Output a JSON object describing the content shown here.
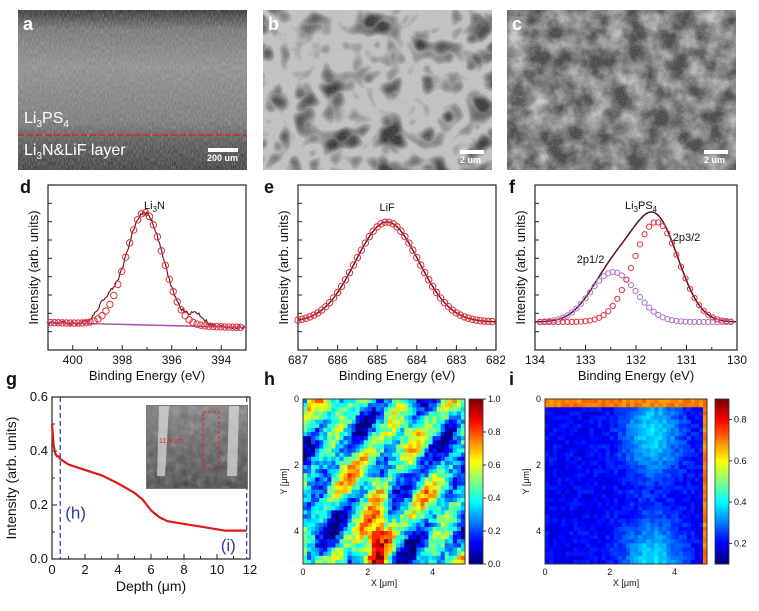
{
  "panels": {
    "a": {
      "letter": "a",
      "top_label": "Li",
      "top_sub": "3",
      "top_rest": "PS",
      "top_sub2": "4",
      "bottom_label": "Li",
      "bottom_sub": "3",
      "bottom_rest": "N&LiF layer",
      "scale": "200 um"
    },
    "b": {
      "letter": "b",
      "scale": "2 um"
    },
    "c": {
      "letter": "c",
      "scale": "2 um"
    },
    "d": {
      "letter": "d"
    },
    "e": {
      "letter": "e"
    },
    "f": {
      "letter": "f"
    },
    "g": {
      "letter": "g",
      "depth_label": "11.8 μm"
    },
    "h": {
      "letter": "h"
    },
    "i": {
      "letter": "i"
    }
  },
  "colors": {
    "fit": "#5a1020",
    "data": "#e0303a",
    "baseline": "#b04aa8",
    "red_curve": "#e01818",
    "guide": "#2a3f9a",
    "sub": "#b070c8"
  },
  "chart_data": [
    {
      "id": "d",
      "type": "line",
      "xlabel": "Binding Energy (eV)",
      "ylabel": "Intensity (arb. units)",
      "xlim": [
        401,
        393
      ],
      "x_ticks": [
        400,
        398,
        396,
        394
      ],
      "annotation": {
        "text": "Li",
        "sub": "3",
        "rest": "N"
      },
      "series": [
        {
          "style": "markers",
          "peak_center": 397.1,
          "peak_width": 0.75,
          "baseline": [
            0.06,
            0.02
          ]
        },
        {
          "style": "line",
          "peak_center": 397.1,
          "peak_width": 0.75
        },
        {
          "style": "baseline-line",
          "values": [
            0.06,
            0.02
          ]
        }
      ]
    },
    {
      "id": "e",
      "type": "line",
      "xlabel": "Binding Energy (eV)",
      "ylabel": "Intensity (arb. units)",
      "xlim": [
        687,
        682
      ],
      "x_ticks": [
        687,
        686,
        685,
        684,
        683,
        682
      ],
      "annotation": {
        "text": "LiF"
      },
      "series": [
        {
          "style": "markers",
          "peak_center": 684.75,
          "peak_width": 0.8
        },
        {
          "style": "line",
          "peak_center": 684.75,
          "peak_width": 0.8
        }
      ]
    },
    {
      "id": "f",
      "type": "line",
      "xlabel": "Binding Energy (eV)",
      "ylabel": "Intensity (arb. units)",
      "xlim": [
        134,
        130
      ],
      "x_ticks": [
        134,
        133,
        132,
        131,
        130
      ],
      "annotation": {
        "text": "Li",
        "sub": "3",
        "rest": "PS",
        "sub2": "4"
      },
      "labels": [
        "2p1/2",
        "2p3/2"
      ],
      "series": [
        {
          "name": "2p3/2",
          "style": "markers",
          "peak_center": 131.6,
          "peak_width": 0.45,
          "amplitude": 1.0
        },
        {
          "name": "2p1/2",
          "style": "markers",
          "peak_center": 132.45,
          "peak_width": 0.45,
          "amplitude": 0.5
        },
        {
          "style": "line",
          "envelope": true
        }
      ]
    },
    {
      "id": "g",
      "type": "line",
      "xlabel": "Depth (μm)",
      "ylabel": "Intensity (arb. units)",
      "xlim": [
        0,
        12
      ],
      "ylim": [
        0.0,
        0.6
      ],
      "x_ticks": [
        0,
        2,
        4,
        6,
        8,
        10,
        12
      ],
      "y_ticks": [
        0.0,
        0.2,
        0.4,
        0.6
      ],
      "guides": [
        {
          "x": 0.5,
          "label": "(h)"
        },
        {
          "x": 11.8,
          "label": "(i)"
        }
      ],
      "series": [
        {
          "style": "line",
          "x": [
            0,
            0.1,
            0.2,
            0.3,
            0.4,
            0.5,
            1,
            2,
            3,
            4,
            5,
            5.5,
            6,
            6.5,
            7,
            8,
            9,
            10,
            10.5,
            11,
            11.8
          ],
          "y": [
            0.5,
            0.42,
            0.39,
            0.38,
            0.38,
            0.37,
            0.35,
            0.33,
            0.31,
            0.28,
            0.245,
            0.22,
            0.18,
            0.155,
            0.14,
            0.13,
            0.12,
            0.11,
            0.105,
            0.105,
            0.105
          ]
        }
      ]
    },
    {
      "id": "h",
      "type": "heatmap",
      "xlabel": "X [μm]",
      "ylabel": "Y [μm]",
      "xlim": [
        0,
        5
      ],
      "ylim": [
        0,
        5
      ],
      "x_ticks": [
        0,
        2,
        4
      ],
      "y_ticks": [
        0,
        2,
        4
      ],
      "colorbar": {
        "min": 0.0,
        "max": 1.0,
        "ticks": [
          "1.0",
          "0.8",
          "0.6",
          "0.4",
          "0.2",
          "0.0"
        ]
      }
    },
    {
      "id": "i",
      "type": "heatmap",
      "xlabel": "X [μm]",
      "ylabel": "Y [μm]",
      "xlim": [
        0,
        5
      ],
      "ylim": [
        0,
        5
      ],
      "x_ticks": [
        0,
        2,
        4
      ],
      "y_ticks": [
        0,
        2,
        4
      ],
      "colorbar": {
        "min": 0.1,
        "max": 0.9,
        "ticks": [
          "0.8",
          "0.6",
          "0.4",
          "0.2"
        ]
      }
    }
  ]
}
